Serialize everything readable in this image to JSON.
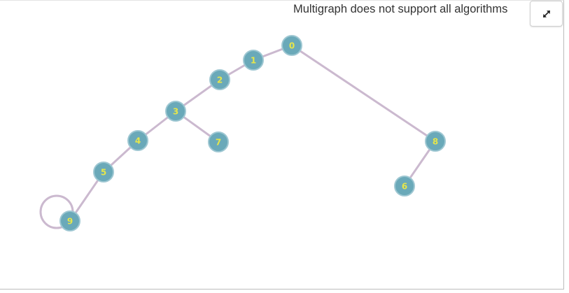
{
  "graph": {
    "notice": "Multigraph does not support all algorithms",
    "expand_button_icon": "expand-arrows-icon",
    "colors": {
      "node_fill": "#6aa9b9",
      "node_stroke": "#9ec7d2",
      "node_label": "#e6e64a",
      "edge": "#cbb9cf"
    },
    "nodes": [
      {
        "id": "0",
        "label": "0"
      },
      {
        "id": "1",
        "label": "1"
      },
      {
        "id": "2",
        "label": "2"
      },
      {
        "id": "3",
        "label": "3"
      },
      {
        "id": "4",
        "label": "4"
      },
      {
        "id": "5",
        "label": "5"
      },
      {
        "id": "6",
        "label": "6"
      },
      {
        "id": "7",
        "label": "7"
      },
      {
        "id": "8",
        "label": "8"
      },
      {
        "id": "9",
        "label": "9"
      }
    ],
    "edges": [
      {
        "source": "0",
        "target": "1"
      },
      {
        "source": "1",
        "target": "2"
      },
      {
        "source": "2",
        "target": "3"
      },
      {
        "source": "3",
        "target": "4"
      },
      {
        "source": "3",
        "target": "7"
      },
      {
        "source": "4",
        "target": "5"
      },
      {
        "source": "5",
        "target": "9"
      },
      {
        "source": "9",
        "target": "9"
      },
      {
        "source": "0",
        "target": "8"
      },
      {
        "source": "8",
        "target": "6"
      }
    ]
  }
}
